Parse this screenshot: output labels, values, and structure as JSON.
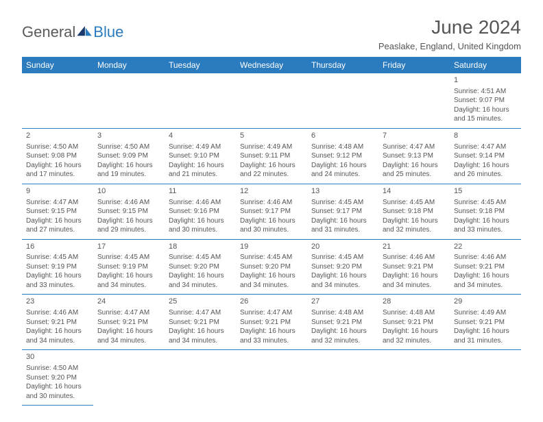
{
  "logo": {
    "textA": "General",
    "textB": "Blue"
  },
  "title": "June 2024",
  "location": "Peaslake, England, United Kingdom",
  "colors": {
    "header_bg": "#2b7bbf",
    "header_text": "#ffffff",
    "border": "#2b7bbf",
    "body_text": "#555555",
    "page_bg": "#ffffff",
    "logo_gray": "#5a5a5a",
    "logo_blue": "#2b7bbf"
  },
  "fonts": {
    "title_size_pt": 21,
    "location_size_pt": 10,
    "header_cell_size_pt": 9,
    "cell_size_pt": 7.5
  },
  "columns": [
    "Sunday",
    "Monday",
    "Tuesday",
    "Wednesday",
    "Thursday",
    "Friday",
    "Saturday"
  ],
  "weeks": [
    [
      null,
      null,
      null,
      null,
      null,
      null,
      {
        "d": "1",
        "sr": "4:51 AM",
        "ss": "9:07 PM",
        "dl": "16 hours and 15 minutes."
      }
    ],
    [
      {
        "d": "2",
        "sr": "4:50 AM",
        "ss": "9:08 PM",
        "dl": "16 hours and 17 minutes."
      },
      {
        "d": "3",
        "sr": "4:50 AM",
        "ss": "9:09 PM",
        "dl": "16 hours and 19 minutes."
      },
      {
        "d": "4",
        "sr": "4:49 AM",
        "ss": "9:10 PM",
        "dl": "16 hours and 21 minutes."
      },
      {
        "d": "5",
        "sr": "4:49 AM",
        "ss": "9:11 PM",
        "dl": "16 hours and 22 minutes."
      },
      {
        "d": "6",
        "sr": "4:48 AM",
        "ss": "9:12 PM",
        "dl": "16 hours and 24 minutes."
      },
      {
        "d": "7",
        "sr": "4:47 AM",
        "ss": "9:13 PM",
        "dl": "16 hours and 25 minutes."
      },
      {
        "d": "8",
        "sr": "4:47 AM",
        "ss": "9:14 PM",
        "dl": "16 hours and 26 minutes."
      }
    ],
    [
      {
        "d": "9",
        "sr": "4:47 AM",
        "ss": "9:15 PM",
        "dl": "16 hours and 27 minutes."
      },
      {
        "d": "10",
        "sr": "4:46 AM",
        "ss": "9:15 PM",
        "dl": "16 hours and 29 minutes."
      },
      {
        "d": "11",
        "sr": "4:46 AM",
        "ss": "9:16 PM",
        "dl": "16 hours and 30 minutes."
      },
      {
        "d": "12",
        "sr": "4:46 AM",
        "ss": "9:17 PM",
        "dl": "16 hours and 30 minutes."
      },
      {
        "d": "13",
        "sr": "4:45 AM",
        "ss": "9:17 PM",
        "dl": "16 hours and 31 minutes."
      },
      {
        "d": "14",
        "sr": "4:45 AM",
        "ss": "9:18 PM",
        "dl": "16 hours and 32 minutes."
      },
      {
        "d": "15",
        "sr": "4:45 AM",
        "ss": "9:18 PM",
        "dl": "16 hours and 33 minutes."
      }
    ],
    [
      {
        "d": "16",
        "sr": "4:45 AM",
        "ss": "9:19 PM",
        "dl": "16 hours and 33 minutes."
      },
      {
        "d": "17",
        "sr": "4:45 AM",
        "ss": "9:19 PM",
        "dl": "16 hours and 34 minutes."
      },
      {
        "d": "18",
        "sr": "4:45 AM",
        "ss": "9:20 PM",
        "dl": "16 hours and 34 minutes."
      },
      {
        "d": "19",
        "sr": "4:45 AM",
        "ss": "9:20 PM",
        "dl": "16 hours and 34 minutes."
      },
      {
        "d": "20",
        "sr": "4:45 AM",
        "ss": "9:20 PM",
        "dl": "16 hours and 34 minutes."
      },
      {
        "d": "21",
        "sr": "4:46 AM",
        "ss": "9:21 PM",
        "dl": "16 hours and 34 minutes."
      },
      {
        "d": "22",
        "sr": "4:46 AM",
        "ss": "9:21 PM",
        "dl": "16 hours and 34 minutes."
      }
    ],
    [
      {
        "d": "23",
        "sr": "4:46 AM",
        "ss": "9:21 PM",
        "dl": "16 hours and 34 minutes."
      },
      {
        "d": "24",
        "sr": "4:47 AM",
        "ss": "9:21 PM",
        "dl": "16 hours and 34 minutes."
      },
      {
        "d": "25",
        "sr": "4:47 AM",
        "ss": "9:21 PM",
        "dl": "16 hours and 34 minutes."
      },
      {
        "d": "26",
        "sr": "4:47 AM",
        "ss": "9:21 PM",
        "dl": "16 hours and 33 minutes."
      },
      {
        "d": "27",
        "sr": "4:48 AM",
        "ss": "9:21 PM",
        "dl": "16 hours and 32 minutes."
      },
      {
        "d": "28",
        "sr": "4:48 AM",
        "ss": "9:21 PM",
        "dl": "16 hours and 32 minutes."
      },
      {
        "d": "29",
        "sr": "4:49 AM",
        "ss": "9:21 PM",
        "dl": "16 hours and 31 minutes."
      }
    ],
    [
      {
        "d": "30",
        "sr": "4:50 AM",
        "ss": "9:20 PM",
        "dl": "16 hours and 30 minutes."
      },
      null,
      null,
      null,
      null,
      null,
      null
    ]
  ],
  "labels": {
    "sunrise": "Sunrise: ",
    "sunset": "Sunset: ",
    "daylight": "Daylight: "
  }
}
